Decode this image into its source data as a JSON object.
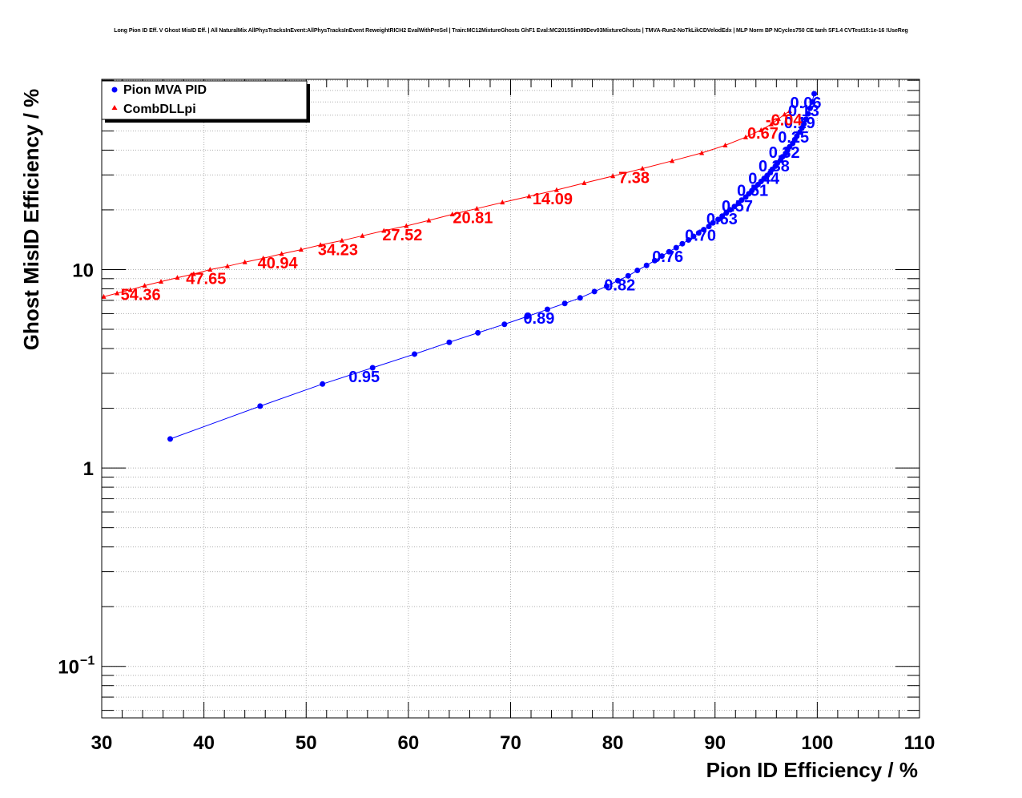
{
  "title": "Long Pion ID Eff. V Ghost MisID Eff. | All NaturalMix AllPhysTracksInEvent:AllPhysTracksInEvent ReweightRICH2 EvalWithPreSel | Train:MC12MixtureGhosts GhF1 Eval:MC2015Sim09Dev03MixtureGhosts | TMVA-Run2-NoTkLikCDVelodEdx | MLP Norm BP NCycles750 CE tanh SF1.4 CVTest15:1e-16 !UseReg",
  "chart_data": {
    "type": "scatter",
    "title": "Long Pion ID Eff. V Ghost MisID Eff. | All NaturalMix AllPhysTracksInEvent:AllPhysTracksInEvent ReweightRICH2 EvalWithPreSel | Train:MC12MixtureGhosts GhF1 Eval:MC2015Sim09Dev03MixtureGhosts | TMVA-Run2-NoTkLikCDVelodEdx | MLP Norm BP NCycles750 CE tanh SF1.4 CVTest15:1e-16 !UseReg",
    "xlabel": "Pion ID Efficiency / %",
    "ylabel": "Ghost MisID Efficiency / %",
    "xlim": [
      30,
      110
    ],
    "ylim": [
      0.055,
      91
    ],
    "yscale": "log",
    "grid": true,
    "legend_position": "top-left",
    "x_ticks": [
      "30",
      "40",
      "50",
      "60",
      "70",
      "80",
      "90",
      "100",
      "110"
    ],
    "y_ticks": [
      "1",
      "10"
    ],
    "y_tick_min": {
      "base": "10",
      "exp": "−1"
    },
    "series": [
      {
        "name": "Pion MVA PID",
        "color": "#0000ff",
        "marker": "circle",
        "x": [
          36.7,
          45.5,
          51.6,
          56.5,
          60.6,
          64.0,
          66.8,
          69.4,
          71.6,
          73.6,
          75.3,
          76.8,
          78.2,
          79.4,
          80.5,
          81.5,
          82.4,
          83.3,
          84.1,
          84.8,
          85.5,
          86.2,
          86.8,
          87.4,
          87.9,
          88.4,
          88.9,
          89.4,
          89.8,
          90.3,
          90.7,
          91.1,
          91.5,
          91.9,
          92.3,
          92.6,
          93.0,
          93.3,
          93.6,
          93.9,
          94.2,
          94.5,
          94.8,
          95.1,
          95.4,
          95.6,
          95.9,
          96.1,
          96.4,
          96.6,
          96.9,
          97.1,
          97.3,
          97.6,
          97.8,
          98.0,
          98.3,
          98.5,
          98.7,
          98.9,
          99.1,
          99.3,
          99.5,
          99.7
        ],
        "y": [
          1.4,
          2.05,
          2.65,
          3.2,
          3.75,
          4.3,
          4.8,
          5.3,
          5.8,
          6.3,
          6.75,
          7.2,
          7.75,
          8.25,
          8.8,
          9.3,
          9.9,
          10.5,
          11.1,
          11.7,
          12.3,
          12.9,
          13.5,
          14.1,
          14.7,
          15.3,
          15.9,
          16.5,
          17.2,
          17.9,
          18.6,
          19.3,
          20.0,
          20.8,
          21.6,
          22.4,
          23.2,
          24.1,
          25.0,
          25.9,
          26.8,
          27.8,
          28.8,
          29.8,
          30.8,
          32.0,
          33.2,
          34.4,
          35.6,
          37.0,
          38.5,
          40.0,
          41.6,
          43.3,
          45.2,
          47.0,
          49.3,
          51.7,
          54.3,
          57.3,
          61.0,
          65.0,
          70.0,
          77.0
        ],
        "point_labels": [
          {
            "text": "0.95",
            "x": 56.5,
            "y": 3.2
          },
          {
            "text": "0.89",
            "x": 73.6,
            "y": 6.3
          },
          {
            "text": "0.82",
            "x": 81.5,
            "y": 9.3
          },
          {
            "text": "0.76",
            "x": 86.2,
            "y": 12.9
          },
          {
            "text": "0.70",
            "x": 89.4,
            "y": 16.5
          },
          {
            "text": "0.63",
            "x": 91.5,
            "y": 20.0
          },
          {
            "text": "0.57",
            "x": 93.0,
            "y": 23.2
          },
          {
            "text": "0.51",
            "x": 94.5,
            "y": 27.8
          },
          {
            "text": "0.44",
            "x": 95.6,
            "y": 32.0
          },
          {
            "text": "0.38",
            "x": 96.6,
            "y": 37.0
          },
          {
            "text": "0.32",
            "x": 97.6,
            "y": 43.3
          },
          {
            "text": "0.25",
            "x": 98.5,
            "y": 51.7
          },
          {
            "text": "0.19",
            "x": 99.1,
            "y": 61.0
          },
          {
            "text": "0.13",
            "x": 99.5,
            "y": 70.0
          },
          {
            "text": "0.06",
            "x": 99.7,
            "y": 77.0
          }
        ]
      },
      {
        "name": "CombDLLpi",
        "color": "#ff0000",
        "marker": "triangle",
        "x": [
          30.2,
          31.5,
          32.8,
          34.2,
          35.8,
          37.4,
          39.0,
          40.6,
          42.3,
          44.0,
          45.8,
          47.6,
          49.5,
          51.4,
          53.5,
          55.5,
          57.6,
          59.8,
          62.0,
          64.3,
          66.7,
          69.2,
          71.8,
          74.5,
          77.2,
          80.0,
          82.9,
          85.8,
          88.7,
          91.0,
          93.0,
          94.5,
          95.5,
          96.2,
          96.8,
          97.3
        ],
        "y": [
          7.3,
          7.6,
          7.9,
          8.3,
          8.7,
          9.1,
          9.5,
          10.0,
          10.4,
          10.9,
          11.4,
          12.0,
          12.6,
          13.3,
          14.0,
          14.8,
          15.7,
          16.6,
          17.7,
          19.0,
          20.3,
          21.8,
          23.4,
          25.2,
          27.3,
          29.6,
          32.3,
          35.3,
          38.7,
          42.3,
          46.5,
          50.5,
          54.0,
          57.5,
          60.5,
          63.0
        ],
        "point_labels": [
          {
            "text": "54.36",
            "x": 34.2,
            "y": 8.3
          },
          {
            "text": "47.65",
            "x": 40.6,
            "y": 10.0
          },
          {
            "text": "40.94",
            "x": 47.6,
            "y": 12.0
          },
          {
            "text": "34.23",
            "x": 53.5,
            "y": 14.0
          },
          {
            "text": "27.52",
            "x": 59.8,
            "y": 16.6
          },
          {
            "text": "20.81",
            "x": 66.7,
            "y": 20.3
          },
          {
            "text": "14.09",
            "x": 74.5,
            "y": 25.2
          },
          {
            "text": "7.38",
            "x": 82.9,
            "y": 32.3
          },
          {
            "text": "0.67",
            "x": 95.5,
            "y": 54.0
          },
          {
            "text": "-6.04",
            "x": 97.3,
            "y": 63.0
          }
        ]
      }
    ]
  }
}
